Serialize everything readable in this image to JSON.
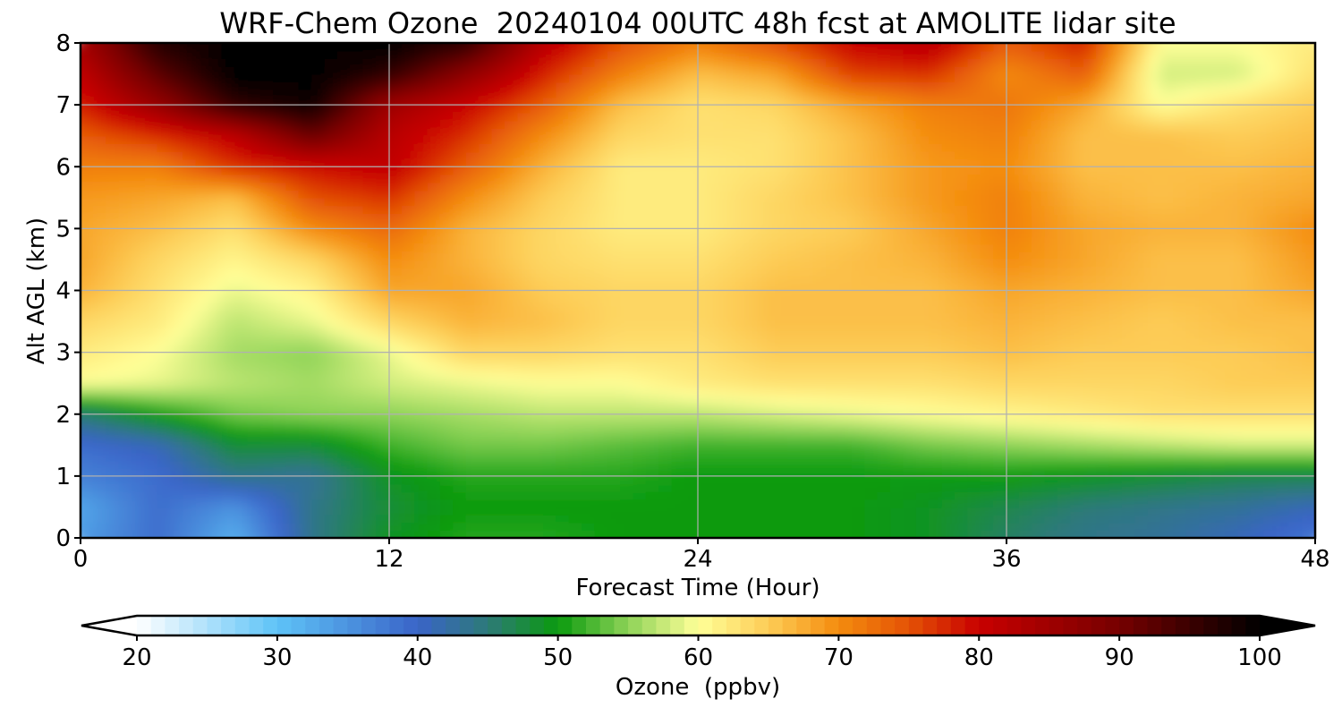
{
  "chart_data": {
    "type": "heatmap",
    "title": "WRF-Chem Ozone  20240104 00UTC 48h fcst at AMOLITE lidar site",
    "xlabel": "Forecast Time (Hour)",
    "ylabel": "Alt AGL (km)",
    "xlim": [
      0,
      48
    ],
    "ylim": [
      0,
      8
    ],
    "x_ticks": [
      "0",
      "12",
      "24",
      "36",
      "48"
    ],
    "y_ticks": [
      "0",
      "1",
      "2",
      "3",
      "4",
      "5",
      "6",
      "7",
      "8"
    ],
    "grid": true,
    "x": [
      0,
      3,
      6,
      9,
      12,
      15,
      18,
      21,
      24,
      27,
      30,
      33,
      36,
      39,
      42,
      45,
      48
    ],
    "y": [
      0,
      0.5,
      1,
      1.5,
      2,
      2.5,
      3,
      3.5,
      4,
      4.5,
      5,
      5.5,
      6,
      6.5,
      7,
      7.5,
      8
    ],
    "z_units": "ppbv",
    "z": [
      [
        34,
        39,
        32,
        44,
        49,
        51,
        51,
        50,
        50,
        50,
        50,
        49,
        46,
        44,
        43,
        41,
        38
      ],
      [
        33,
        39,
        35,
        44,
        48,
        50,
        50,
        50,
        50,
        50,
        50,
        49,
        47,
        45,
        44,
        43,
        41
      ],
      [
        37,
        39,
        44,
        43,
        49,
        51,
        51,
        51,
        50,
        50,
        50,
        50,
        50,
        49,
        48,
        47,
        47
      ],
      [
        39,
        41,
        48,
        48,
        52,
        54,
        54,
        53,
        52,
        52,
        52,
        54,
        55,
        56,
        57,
        58,
        58
      ],
      [
        45,
        50,
        54,
        55,
        55,
        56,
        57,
        57,
        57,
        58,
        59,
        60,
        61,
        62,
        63,
        63,
        63
      ],
      [
        60,
        59,
        57,
        56,
        58,
        59,
        60,
        60,
        62,
        63,
        63,
        63,
        64,
        64,
        64,
        65,
        65
      ],
      [
        62,
        60,
        56,
        55,
        59,
        64,
        64,
        63,
        63,
        65,
        65,
        65,
        66,
        65,
        65,
        65,
        66
      ],
      [
        64,
        62,
        57,
        59,
        64,
        67,
        66,
        64,
        64,
        66,
        66,
        66,
        67,
        66,
        65,
        66,
        66
      ],
      [
        67,
        63,
        59,
        61,
        68,
        68,
        65,
        64,
        64,
        66,
        66,
        66,
        68,
        67,
        66,
        66,
        68
      ],
      [
        68,
        64,
        61,
        64,
        70,
        67,
        64,
        63,
        63,
        65,
        66,
        67,
        70,
        68,
        66,
        66,
        69
      ],
      [
        68,
        66,
        63,
        70,
        73,
        67,
        64,
        62,
        62,
        64,
        65,
        68,
        71,
        68,
        67,
        67,
        70
      ],
      [
        69,
        68,
        66,
        75,
        77,
        70,
        65,
        62,
        62,
        64,
        66,
        69,
        71,
        67,
        66,
        67,
        68
      ],
      [
        71,
        71,
        77,
        79,
        81,
        74,
        67,
        62,
        62,
        63,
        66,
        69,
        70,
        66,
        66,
        66,
        67
      ],
      [
        74,
        77,
        81,
        91,
        82,
        77,
        70,
        64,
        63,
        63,
        66,
        70,
        71,
        66,
        66,
        65,
        66
      ],
      [
        78,
        86,
        96,
        99,
        85,
        80,
        74,
        66,
        63,
        64,
        68,
        71,
        72,
        68,
        60,
        63,
        65
      ],
      [
        81,
        92,
        100,
        100,
        96,
        87,
        78,
        71,
        66,
        68,
        76,
        77,
        70,
        74,
        58,
        58,
        63
      ],
      [
        84,
        97,
        100,
        100,
        100,
        96,
        82,
        75,
        71,
        75,
        80,
        82,
        74,
        78,
        60,
        60,
        62
      ]
    ],
    "colorbar": {
      "label": "Ozone  (ppbv)",
      "min": 20,
      "max": 100,
      "ticks": [
        "20",
        "30",
        "40",
        "50",
        "60",
        "70",
        "80",
        "90",
        "100"
      ],
      "extend": "both",
      "colors": [
        {
          "v": 20,
          "c": "#ffffff"
        },
        {
          "v": 30,
          "c": "#5ec3f7"
        },
        {
          "v": 40,
          "c": "#3a64c8"
        },
        {
          "v": 45,
          "c": "#2d7a78"
        },
        {
          "v": 50,
          "c": "#0a9a0e"
        },
        {
          "v": 55,
          "c": "#8ed357"
        },
        {
          "v": 60,
          "c": "#ffff98"
        },
        {
          "v": 65,
          "c": "#fdcc56"
        },
        {
          "v": 70,
          "c": "#f48c0e"
        },
        {
          "v": 75,
          "c": "#e45206"
        },
        {
          "v": 80,
          "c": "#c80000"
        },
        {
          "v": 90,
          "c": "#760000"
        },
        {
          "v": 100,
          "c": "#000000"
        }
      ]
    }
  }
}
